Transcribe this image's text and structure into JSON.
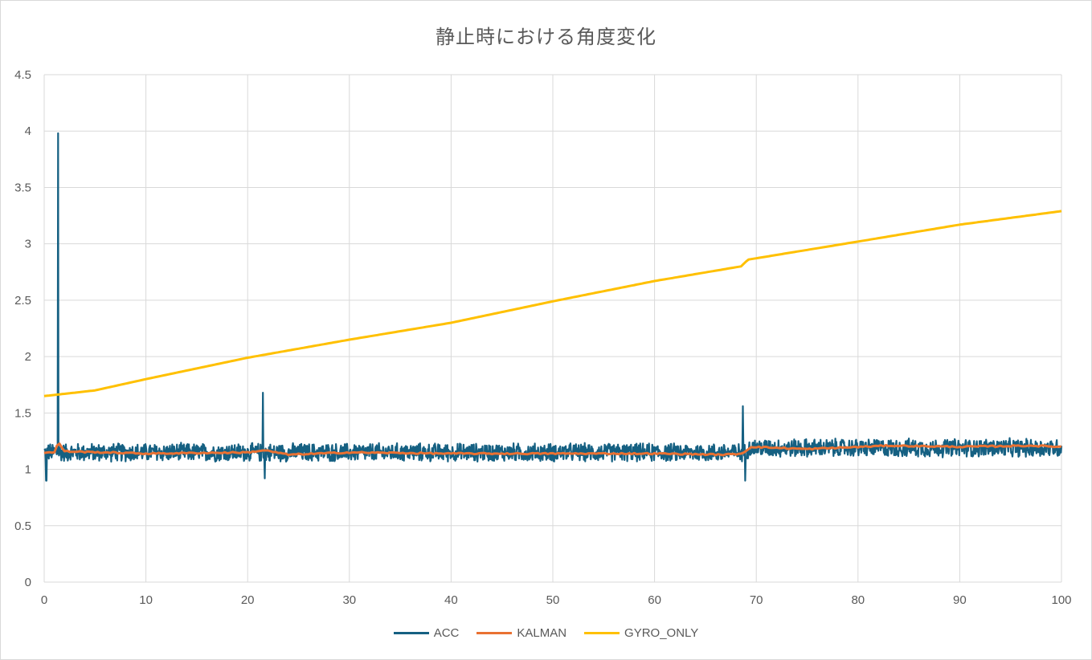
{
  "chart_data": {
    "type": "line",
    "title": "静止時における角度変化",
    "xlabel": "",
    "ylabel": "",
    "xlim": [
      0,
      100
    ],
    "ylim": [
      0,
      4.5
    ],
    "x_ticks": [
      "0",
      "10",
      "20",
      "30",
      "40",
      "50",
      "60",
      "70",
      "80",
      "90",
      "100"
    ],
    "y_ticks": [
      "0",
      "0.5",
      "1",
      "1.5",
      "2",
      "2.5",
      "3",
      "3.5",
      "4",
      "4.5"
    ],
    "grid": true,
    "legend_position": "bottom",
    "series": [
      {
        "name": "ACC",
        "color": "#156082",
        "baseline": [
          [
            0,
            1.15
          ],
          [
            68.5,
            1.15
          ],
          [
            69.5,
            1.19
          ],
          [
            100,
            1.19
          ]
        ],
        "noise_amplitude": 0.09,
        "spikes": [
          [
            1.35,
            3.98
          ],
          [
            21.5,
            1.68
          ],
          [
            21.7,
            0.92
          ],
          [
            68.7,
            1.56
          ],
          [
            68.9,
            0.9
          ],
          [
            0.2,
            0.9
          ]
        ]
      },
      {
        "name": "KALMAN",
        "color": "#E97132",
        "points": [
          [
            0,
            1.15
          ],
          [
            1.0,
            1.15
          ],
          [
            1.4,
            1.24
          ],
          [
            2.0,
            1.16
          ],
          [
            10,
            1.14
          ],
          [
            20,
            1.15
          ],
          [
            21.6,
            1.17
          ],
          [
            24,
            1.13
          ],
          [
            30,
            1.15
          ],
          [
            40,
            1.14
          ],
          [
            50,
            1.14
          ],
          [
            60,
            1.14
          ],
          [
            67,
            1.13
          ],
          [
            68.6,
            1.14
          ],
          [
            69.5,
            1.2
          ],
          [
            75,
            1.18
          ],
          [
            83,
            1.21
          ],
          [
            90,
            1.2
          ],
          [
            97,
            1.21
          ],
          [
            100,
            1.2
          ]
        ]
      },
      {
        "name": "GYRO_ONLY",
        "color": "#FFC000",
        "points": [
          [
            0,
            1.65
          ],
          [
            5,
            1.7
          ],
          [
            10,
            1.8
          ],
          [
            20,
            1.99
          ],
          [
            30,
            2.15
          ],
          [
            40,
            2.3
          ],
          [
            50,
            2.49
          ],
          [
            60,
            2.67
          ],
          [
            68.5,
            2.8
          ],
          [
            69.2,
            2.86
          ],
          [
            80,
            3.02
          ],
          [
            90,
            3.17
          ],
          [
            100,
            3.29
          ]
        ]
      }
    ]
  }
}
